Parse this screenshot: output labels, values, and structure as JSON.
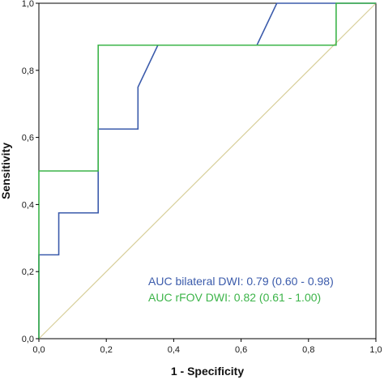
{
  "chart_data": {
    "type": "line",
    "xlabel": "1 - Specificity",
    "ylabel": "Sensitivity",
    "xlim": [
      0,
      1
    ],
    "ylim": [
      0,
      1
    ],
    "x_ticks": [
      "0,0",
      "0,2",
      "0,4",
      "0,6",
      "0,8",
      "1,0"
    ],
    "y_ticks": [
      "0,0",
      "0,2",
      "0,4",
      "0,6",
      "0,8",
      "1,0"
    ],
    "grid": false,
    "reference_line": {
      "x": [
        0,
        1
      ],
      "y": [
        0,
        1
      ],
      "color": "#d8cf9a"
    },
    "series": [
      {
        "color": "#3b5bab",
        "x": [
          0,
          0,
          0.059,
          0.059,
          0.176,
          0.176,
          0.294,
          0.294,
          0.353,
          0.647,
          0.706,
          1
        ],
        "y": [
          0,
          0.25,
          0.25,
          0.375,
          0.375,
          0.625,
          0.625,
          0.75,
          0.875,
          0.875,
          1,
          1
        ]
      },
      {
        "color": "#3cb449",
        "x": [
          0,
          0,
          0.176,
          0.176,
          0.882,
          0.882,
          1
        ],
        "y": [
          0,
          0.5,
          0.5,
          0.875,
          0.875,
          1,
          1
        ]
      }
    ],
    "annotations": [
      {
        "text": "AUC bilateral DWI: 0.79 (0.60 - 0.98)",
        "color": "#3b5bab"
      },
      {
        "text": "AUC rFOV DWI: 0.82 (0.61 - 1.00)",
        "color": "#3cb449"
      }
    ]
  }
}
